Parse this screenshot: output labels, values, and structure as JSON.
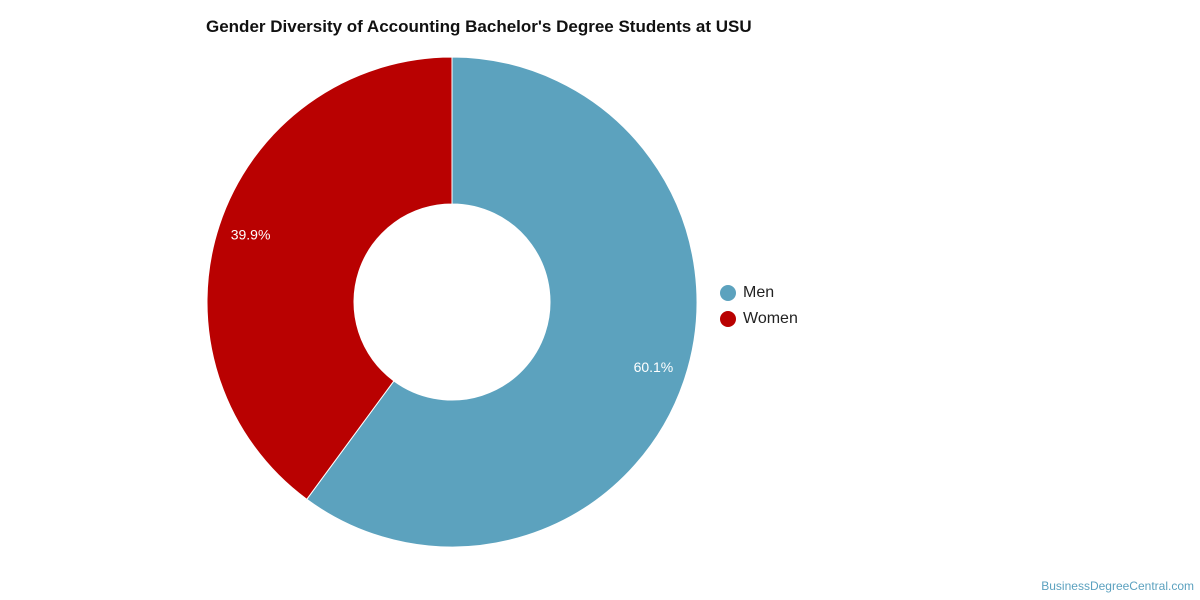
{
  "chart_data": {
    "type": "pie",
    "title": "Gender Diversity of Accounting Bachelor's Degree Students at USU",
    "donut": true,
    "slices": [
      {
        "name": "Men",
        "value": 60.1,
        "label": "60.1%",
        "color": "#5ca2be"
      },
      {
        "name": "Women",
        "value": 39.9,
        "label": "39.9%",
        "color": "#b90101"
      }
    ],
    "legend": "right"
  },
  "credit": "BusinessDegreeCentral.com"
}
